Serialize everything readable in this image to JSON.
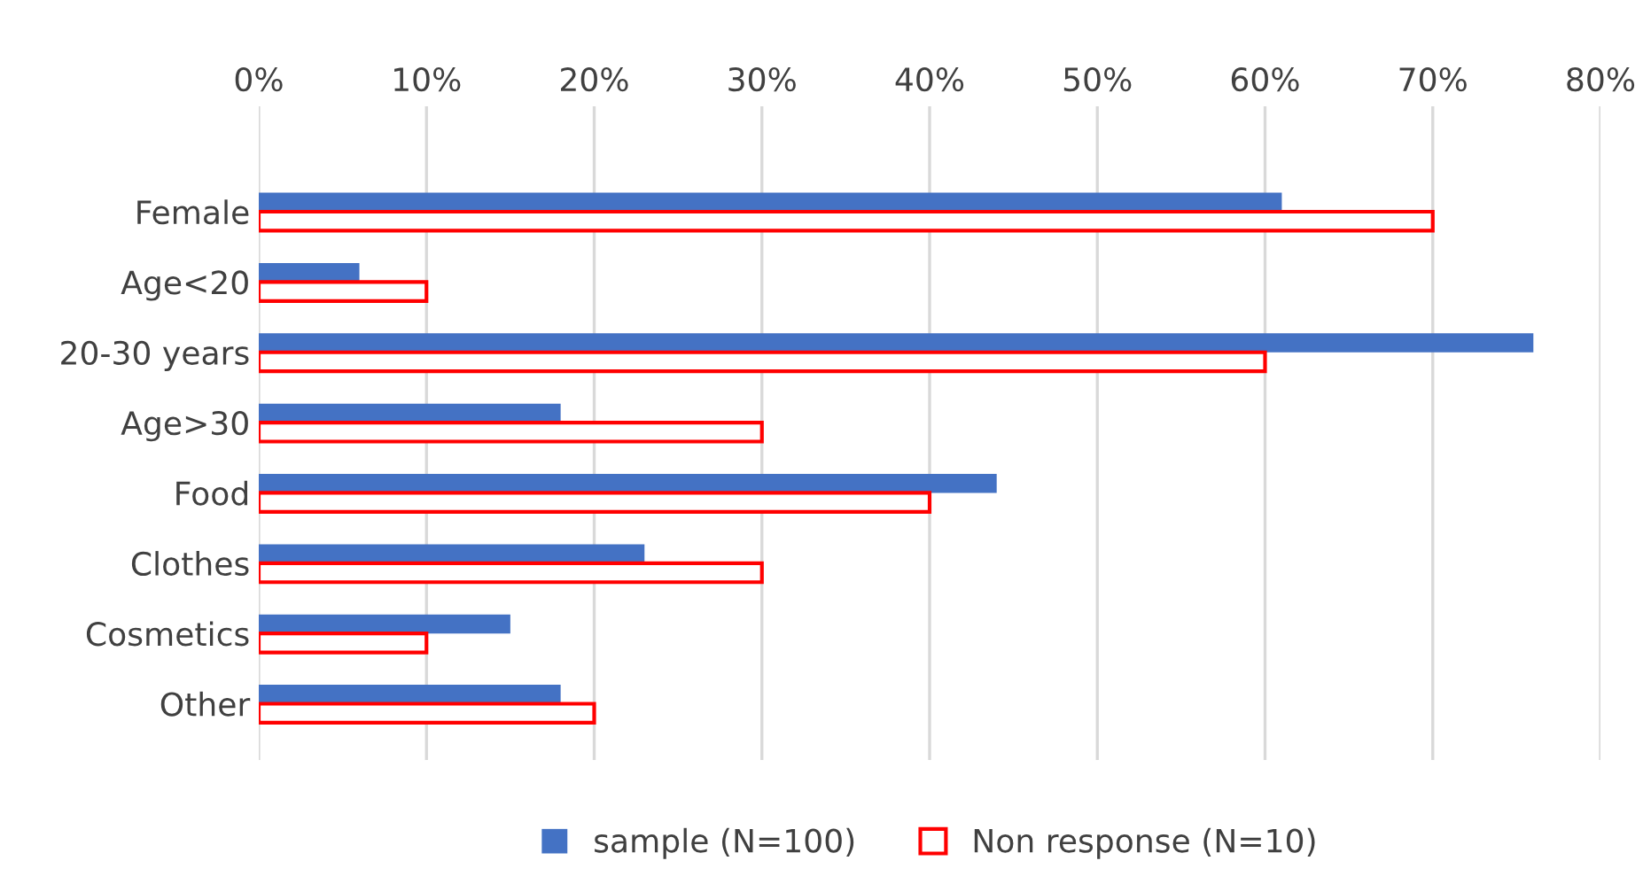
{
  "chart_data": {
    "type": "bar",
    "orientation": "horizontal",
    "categories": [
      "Female",
      "Age<20",
      "20-30 years",
      "Age>30",
      "Food",
      "Clothes",
      "Cosmetics",
      "Other"
    ],
    "series": [
      {
        "name": "sample (N=100)",
        "color": "#4472c4",
        "values": [
          61,
          6,
          76,
          18,
          44,
          23,
          15,
          18
        ]
      },
      {
        "name": "Non response (N=10)",
        "color": "#ff0000",
        "values": [
          70,
          10,
          60,
          30,
          40,
          30,
          10,
          20
        ]
      }
    ],
    "xlim": [
      0,
      80
    ],
    "xticks": [
      {
        "value": 0,
        "label": "0%"
      },
      {
        "value": 10,
        "label": "10%"
      },
      {
        "value": 20,
        "label": "20%"
      },
      {
        "value": 30,
        "label": "30%"
      },
      {
        "value": 40,
        "label": "40%"
      },
      {
        "value": 50,
        "label": "50%"
      },
      {
        "value": 60,
        "label": "60%"
      },
      {
        "value": 70,
        "label": "70%"
      },
      {
        "value": 80,
        "label": "80%"
      }
    ],
    "grid": "x",
    "legend": "bottom"
  }
}
